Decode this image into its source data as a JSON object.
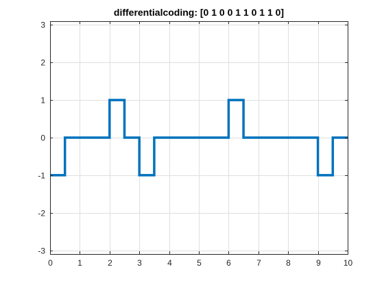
{
  "chart_data": {
    "type": "line",
    "title": "differentialcoding: [0  1  0  0  1  1  0  1  1  0]",
    "xlabel": "",
    "ylabel": "",
    "xlim": [
      0,
      10
    ],
    "ylim": [
      -3.1,
      3.1
    ],
    "x_ticks": [
      0,
      1,
      2,
      3,
      4,
      5,
      6,
      7,
      8,
      9,
      10
    ],
    "x_tick_labels": [
      "0",
      "1",
      "2",
      "3",
      "4",
      "5",
      "6",
      "7",
      "8",
      "9",
      "10"
    ],
    "y_ticks": [
      -3,
      -2,
      -1,
      0,
      1,
      2,
      3
    ],
    "y_tick_labels": [
      "-3",
      "-2",
      "-1",
      "0",
      "1",
      "2",
      "3"
    ],
    "grid": true,
    "legend": "none",
    "series": [
      {
        "color": "#0072bd",
        "step": "post",
        "x": [
          0,
          0.5,
          2,
          2.5,
          3,
          3.5,
          6,
          6.5,
          9,
          9.5,
          10
        ],
        "y": [
          -1,
          0,
          1,
          0,
          -1,
          0,
          1,
          0,
          -1,
          0,
          0
        ]
      }
    ]
  }
}
